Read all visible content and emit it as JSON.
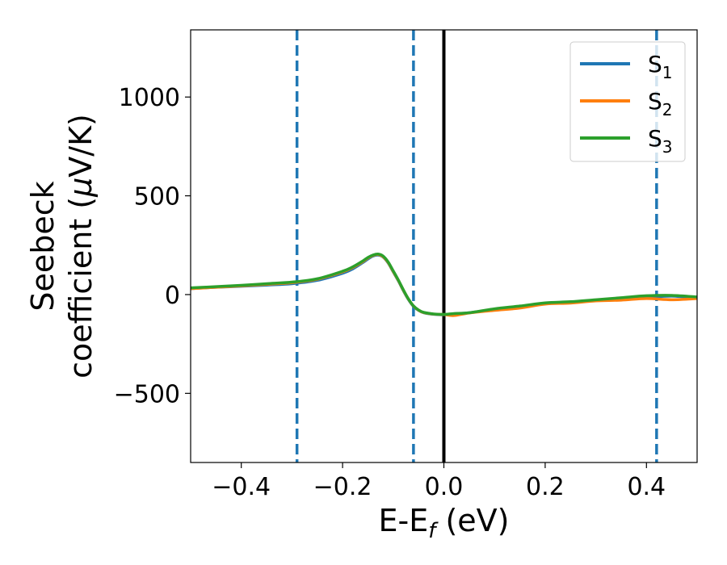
{
  "chart_data": {
    "type": "line",
    "xlabel": "E-E",
    "xlabel_sub": "f",
    "xlabel_unit": " (eV)",
    "ylabel_line1": "Seebeck",
    "ylabel_line2_prefix": "coefficient  (",
    "ylabel_mu": "μ",
    "ylabel_line2_suffix": "V/K)",
    "xlim": [
      -0.5,
      0.5
    ],
    "ylim": [
      -850,
      1340
    ],
    "xticks": [
      -0.4,
      -0.2,
      0.0,
      0.2,
      0.4
    ],
    "xtick_labels": [
      "−0.4",
      "−0.2",
      "0.0",
      "0.2",
      "0.4"
    ],
    "yticks": [
      -500,
      0,
      500,
      1000
    ],
    "ytick_labels": [
      "−500",
      "0",
      "500",
      "1000"
    ],
    "grid": false,
    "legend_position": "top-right",
    "vlines": [
      {
        "x": -0.29,
        "style": "dashed",
        "color": "#1f77b4"
      },
      {
        "x": -0.06,
        "style": "dashed",
        "color": "#1f77b4"
      },
      {
        "x": 0.0,
        "style": "solid",
        "color": "#000000"
      },
      {
        "x": 0.42,
        "style": "dashed",
        "color": "#1f77b4"
      }
    ],
    "x": [
      -0.5,
      -0.45,
      -0.4,
      -0.35,
      -0.3,
      -0.25,
      -0.2,
      -0.18,
      -0.16,
      -0.15,
      -0.14,
      -0.13,
      -0.12,
      -0.11,
      -0.1,
      -0.09,
      -0.08,
      -0.07,
      -0.06,
      -0.05,
      -0.04,
      -0.02,
      0.0,
      0.02,
      0.05,
      0.1,
      0.15,
      0.2,
      0.25,
      0.3,
      0.35,
      0.4,
      0.45,
      0.5
    ],
    "series": [
      {
        "name": "S",
        "sub": "1",
        "color": "#1f77b4",
        "values": [
          30,
          37,
          42,
          48,
          55,
          72,
          108,
          130,
          162,
          180,
          195,
          200,
          190,
          160,
          115,
          70,
          20,
          -25,
          -60,
          -80,
          -92,
          -100,
          -102,
          -97,
          -92,
          -75,
          -62,
          -45,
          -38,
          -28,
          -20,
          -14,
          -8,
          -18
        ]
      },
      {
        "name": "S",
        "sub": "2",
        "color": "#ff7f0e",
        "values": [
          30,
          37,
          44,
          52,
          60,
          78,
          115,
          137,
          167,
          185,
          198,
          203,
          192,
          162,
          117,
          72,
          22,
          -23,
          -58,
          -79,
          -91,
          -99,
          -101,
          -106,
          -93,
          -80,
          -68,
          -48,
          -43,
          -32,
          -28,
          -20,
          -26,
          -20
        ]
      },
      {
        "name": "S",
        "sub": "3",
        "color": "#2ca02c",
        "values": [
          34,
          40,
          47,
          55,
          63,
          80,
          118,
          140,
          170,
          188,
          200,
          205,
          195,
          165,
          120,
          74,
          24,
          -22,
          -57,
          -78,
          -90,
          -98,
          -100,
          -96,
          -92,
          -72,
          -58,
          -42,
          -36,
          -26,
          -16,
          -6,
          -4,
          -12
        ]
      }
    ]
  }
}
